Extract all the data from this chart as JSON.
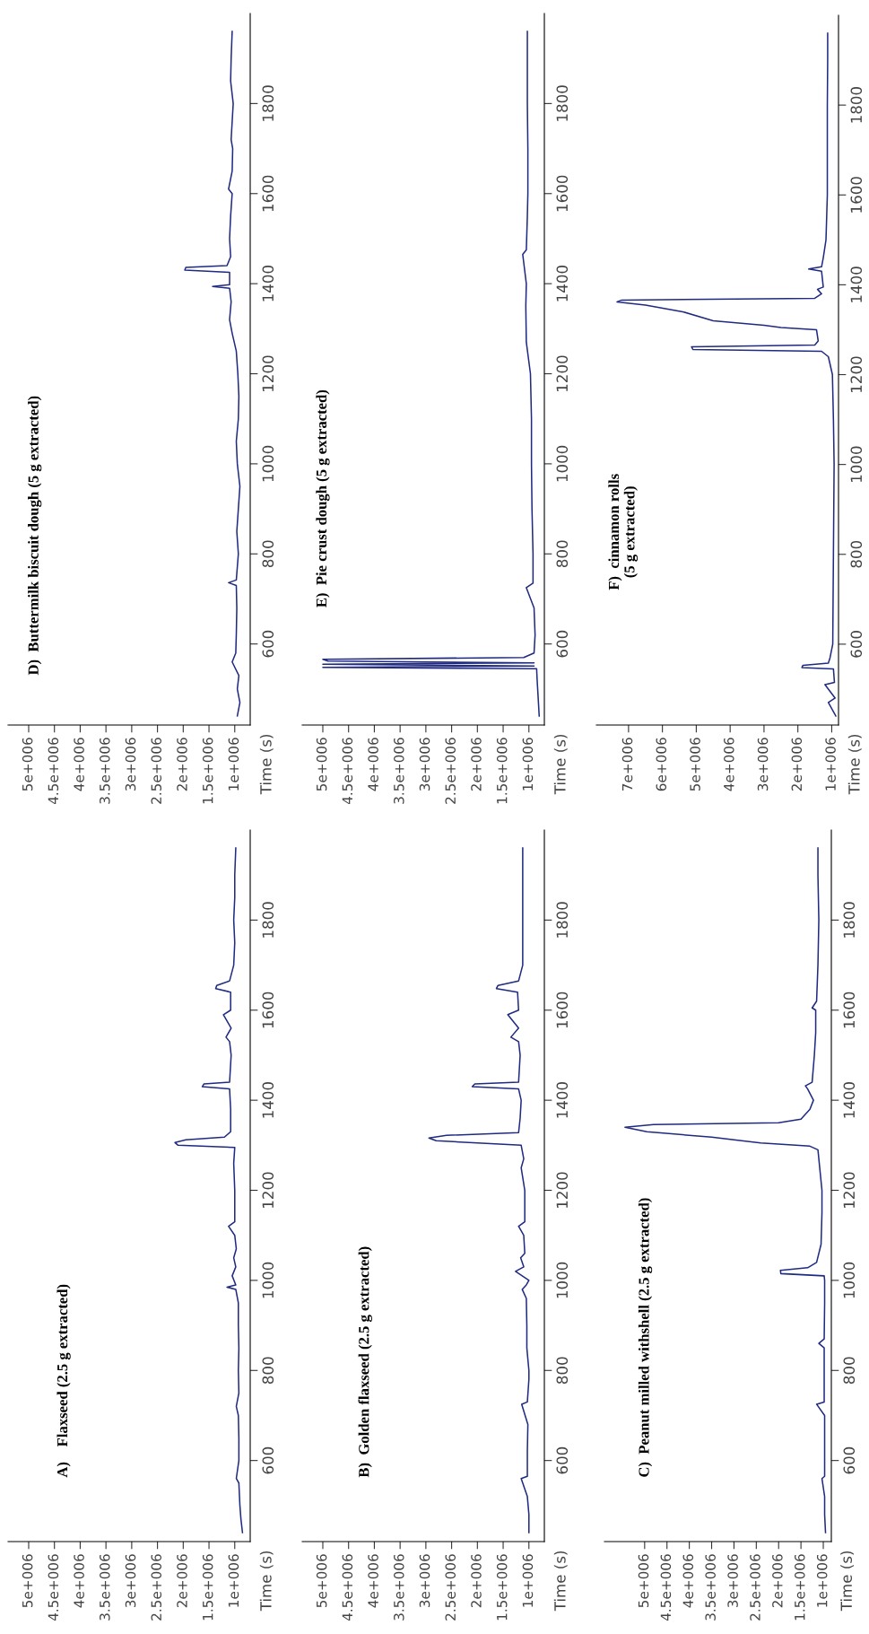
{
  "chart_data": [
    {
      "type": "line",
      "title": "D)  Buttermilk biscuit dough (5 g extracted)",
      "ylabel": "Time (s)",
      "color": "#1f2a80",
      "ylim": [
        420,
        2000
      ],
      "yticks": [
        600,
        800,
        1000,
        1200,
        1400,
        1600,
        1800
      ],
      "xlim": [
        5400000.0,
        700000.0
      ],
      "xticks": [
        {
          "value": 1000000.0,
          "label": "1e+006"
        },
        {
          "value": 1500000.0,
          "label": "1.5e+006"
        },
        {
          "value": 2000000.0,
          "label": "2e+006"
        },
        {
          "value": 2500000.0,
          "label": "2.5e+006"
        },
        {
          "value": 3000000.0,
          "label": "3e+006"
        },
        {
          "value": 3500000.0,
          "label": "3.5e+006"
        },
        {
          "value": 4000000.0,
          "label": "4e+006"
        },
        {
          "value": 4500000.0,
          "label": "4.5e+006"
        },
        {
          "value": 5000000.0,
          "label": "5e+006"
        }
      ],
      "values": [
        440,
        470,
        500,
        530,
        560,
        580,
        620,
        680,
        730,
        736,
        742,
        800,
        850,
        900,
        950,
        1000,
        1050,
        1100,
        1150,
        1200,
        1250,
        1290,
        1320,
        1360,
        1390,
        1394,
        1398,
        1425,
        1430,
        1436,
        1440,
        1460,
        1500,
        1550,
        1600,
        1610,
        1650,
        1700,
        1720,
        1800,
        1850,
        1900,
        1960
      ],
      "x": [
        950000.0,
        900000.0,
        950000.0,
        920000.0,
        1050000.0,
        980000.0,
        970000.0,
        960000.0,
        970000.0,
        1120000.0,
        970000.0,
        930000.0,
        960000.0,
        930000.0,
        900000.0,
        950000.0,
        970000.0,
        930000.0,
        920000.0,
        940000.0,
        970000.0,
        1050000.0,
        1100000.0,
        1070000.0,
        1100000.0,
        1430000.0,
        1100000.0,
        1100000.0,
        1970000.0,
        1950000.0,
        1150000.0,
        1080000.0,
        1100000.0,
        1080000.0,
        1050000.0,
        1120000.0,
        1050000.0,
        1040000.0,
        1070000.0,
        1030000.0,
        1080000.0,
        1070000.0,
        1050000.0
      ]
    },
    {
      "type": "line",
      "title": "E)  Pie crust dough (5 g extracted)",
      "ylabel": "Time (s)",
      "color": "#1f2a80",
      "ylim": [
        420,
        2000
      ],
      "yticks": [
        600,
        800,
        1000,
        1200,
        1400,
        1600,
        1800
      ],
      "xlim": [
        5400000.0,
        700000.0
      ],
      "xticks": [
        {
          "value": 1000000.0,
          "label": "1e+006"
        },
        {
          "value": 1500000.0,
          "label": "1.5e+006"
        },
        {
          "value": 2000000.0,
          "label": "2e+006"
        },
        {
          "value": 2500000.0,
          "label": "2.5e+006"
        },
        {
          "value": 3000000.0,
          "label": "3e+006"
        },
        {
          "value": 3500000.0,
          "label": "3.5e+006"
        },
        {
          "value": 4000000.0,
          "label": "4e+006"
        },
        {
          "value": 4500000.0,
          "label": "4.5e+006"
        },
        {
          "value": 5000000.0,
          "label": "5e+006"
        }
      ],
      "values": [
        440,
        480,
        520,
        545,
        548,
        551,
        555,
        558,
        562,
        566,
        570,
        580,
        620,
        680,
        725,
        735,
        800,
        900,
        1000,
        1100,
        1200,
        1270,
        1350,
        1400,
        1465,
        1475,
        1550,
        1600,
        1700,
        1800,
        1900,
        1960
      ],
      "x": [
        800000.0,
        820000.0,
        840000.0,
        850000.0,
        5000000.0,
        900000.0,
        5000000.0,
        900000.0,
        4900000.0,
        5000000.0,
        1100000.0,
        900000.0,
        880000.0,
        900000.0,
        1050000.0,
        920000.0,
        920000.0,
        940000.0,
        950000.0,
        950000.0,
        970000.0,
        1050000.0,
        1060000.0,
        1050000.0,
        1120000.0,
        1050000.0,
        1030000.0,
        1020000.0,
        1020000.0,
        1030000.0,
        1030000.0,
        1030000.0
      ]
    },
    {
      "type": "line",
      "title": "F)  cinnamon rolls\n(5 g extracted)",
      "ylabel": "Time (s)",
      "color": "#1f2a80",
      "ylim": [
        420,
        2000
      ],
      "yticks": [
        600,
        800,
        1000,
        1200,
        1400,
        1600,
        1800
      ],
      "xlim": [
        7950000.0,
        800000.0
      ],
      "xticks": [
        {
          "value": 1000000.0,
          "label": "1e+006"
        },
        {
          "value": 2000000.0,
          "label": "2e+006"
        },
        {
          "value": 3000000.0,
          "label": "3e+006"
        },
        {
          "value": 4000000.0,
          "label": "4e+006"
        },
        {
          "value": 5000000.0,
          "label": "5e+006"
        },
        {
          "value": 6000000.0,
          "label": "6e+006"
        },
        {
          "value": 7000000.0,
          "label": "7e+006"
        }
      ],
      "values": [
        440,
        470,
        480,
        510,
        515,
        545,
        548,
        553,
        558,
        570,
        600,
        700,
        800,
        900,
        1000,
        1100,
        1200,
        1240,
        1252,
        1256,
        1262,
        1266,
        1275,
        1300,
        1305,
        1310,
        1320,
        1340,
        1355,
        1362,
        1366,
        1370,
        1380,
        1390,
        1395,
        1430,
        1435,
        1440,
        1460,
        1500,
        1600,
        1700,
        1800,
        1900,
        1960
      ],
      "x": [
        880000.0,
        1100000.0,
        900000.0,
        1200000.0,
        920000.0,
        950000.0,
        1880000.0,
        1850000.0,
        1100000.0,
        1050000.0,
        970000.0,
        960000.0,
        950000.0,
        940000.0,
        930000.0,
        950000.0,
        980000.0,
        1100000.0,
        1300000.0,
        5100000.0,
        5140000.0,
        1500000.0,
        1400000.0,
        1450000.0,
        2500000.0,
        3000000.0,
        4500000.0,
        5400000.0,
        6500000.0,
        7340000.0,
        7200000.0,
        1500000.0,
        1300000.0,
        1420000.0,
        1250000.0,
        1300000.0,
        1680000.0,
        1300000.0,
        1250000.0,
        1170000.0,
        1130000.0,
        1130000.0,
        1130000.0,
        1120000.0,
        1120000.0
      ]
    },
    {
      "type": "line",
      "title": "A)    Flaxseed (2.5 g extracted)",
      "ylabel": "Time (s)",
      "color": "#1f2a80",
      "ylim": [
        420,
        2000
      ],
      "yticks": [
        600,
        800,
        1000,
        1200,
        1400,
        1600,
        1800
      ],
      "xlim": [
        5400000.0,
        700000.0
      ],
      "xticks": [
        {
          "value": 1000000.0,
          "label": "1e+006"
        },
        {
          "value": 1500000.0,
          "label": "1.5e+006"
        },
        {
          "value": 2000000.0,
          "label": "2e+006"
        },
        {
          "value": 2500000.0,
          "label": "2.5e+006"
        },
        {
          "value": 3000000.0,
          "label": "3e+006"
        },
        {
          "value": 3500000.0,
          "label": "3.5e+006"
        },
        {
          "value": 4000000.0,
          "label": "4e+006"
        },
        {
          "value": 4500000.0,
          "label": "4.5e+006"
        },
        {
          "value": 5000000.0,
          "label": "5e+006"
        }
      ],
      "values": [
        440,
        470,
        500,
        550,
        560,
        600,
        650,
        700,
        720,
        750,
        800,
        850,
        900,
        950,
        980,
        985,
        990,
        1010,
        1030,
        1050,
        1070,
        1100,
        1120,
        1130,
        1200,
        1260,
        1295,
        1300,
        1306,
        1312,
        1318,
        1330,
        1380,
        1425,
        1430,
        1436,
        1440,
        1500,
        1530,
        1540,
        1560,
        1590,
        1600,
        1640,
        1648,
        1655,
        1665,
        1700,
        1750,
        1800,
        1850,
        1900,
        1960
      ],
      "x": [
        850000.0,
        880000.0,
        900000.0,
        920000.0,
        970000.0,
        920000.0,
        920000.0,
        930000.0,
        970000.0,
        920000.0,
        930000.0,
        920000.0,
        930000.0,
        930000.0,
        980000.0,
        1150000.0,
        980000.0,
        1050000.0,
        980000.0,
        1020000.0,
        970000.0,
        1000000.0,
        1120000.0,
        1000000.0,
        1000000.0,
        1020000.0,
        1000000.0,
        2100000.0,
        2160000.0,
        1950000.0,
        1200000.0,
        1080000.0,
        1080000.0,
        1100000.0,
        1630000.0,
        1600000.0,
        1100000.0,
        1070000.0,
        1100000.0,
        1170000.0,
        1070000.0,
        1220000.0,
        1080000.0,
        1080000.0,
        1370000.0,
        1350000.0,
        1100000.0,
        1020000.0,
        1000000.0,
        1020000.0,
        1000000.0,
        1000000.0,
        980000.0
      ]
    },
    {
      "type": "line",
      "title": "B)  Golden flaxseed (2.5 g extracted)",
      "ylabel": "Time (s)",
      "color": "#1f2a80",
      "ylim": [
        420,
        2000
      ],
      "yticks": [
        600,
        800,
        1000,
        1200,
        1400,
        1600,
        1800
      ],
      "xlim": [
        5400000.0,
        700000.0
      ],
      "xticks": [
        {
          "value": 1000000.0,
          "label": "1e+006"
        },
        {
          "value": 1500000.0,
          "label": "1.5e+006"
        },
        {
          "value": 2000000.0,
          "label": "2e+006"
        },
        {
          "value": 2500000.0,
          "label": "2.5e+006"
        },
        {
          "value": 3000000.0,
          "label": "3e+006"
        },
        {
          "value": 3500000.0,
          "label": "3.5e+006"
        },
        {
          "value": 4000000.0,
          "label": "4e+006"
        },
        {
          "value": 4500000.0,
          "label": "4.5e+006"
        },
        {
          "value": 5000000.0,
          "label": "5e+006"
        }
      ],
      "values": [
        440,
        480,
        520,
        560,
        565,
        620,
        680,
        725,
        730,
        780,
        800,
        850,
        900,
        960,
        980,
        990,
        1000,
        1020,
        1030,
        1050,
        1060,
        1100,
        1120,
        1130,
        1200,
        1250,
        1270,
        1300,
        1310,
        1316,
        1322,
        1328,
        1360,
        1400,
        1425,
        1430,
        1436,
        1440,
        1500,
        1530,
        1540,
        1560,
        1590,
        1600,
        1640,
        1648,
        1655,
        1665,
        1700,
        1800,
        1900,
        1960
      ],
      "x": [
        1000000.0,
        1000000.0,
        1030000.0,
        1150000.0,
        1030000.0,
        1030000.0,
        1020000.0,
        1140000.0,
        1030000.0,
        1000000.0,
        1000000.0,
        1040000.0,
        1040000.0,
        1050000.0,
        1130000.0,
        1050000.0,
        1000000.0,
        1260000.0,
        1100000.0,
        1160000.0,
        1080000.0,
        1100000.0,
        1200000.0,
        1080000.0,
        1080000.0,
        1150000.0,
        1100000.0,
        1150000.0,
        2800000.0,
        2940000.0,
        2600000.0,
        1200000.0,
        1170000.0,
        1150000.0,
        1200000.0,
        2100000.0,
        2050000.0,
        1200000.0,
        1170000.0,
        1200000.0,
        1350000.0,
        1200000.0,
        1410000.0,
        1200000.0,
        1220000.0,
        1630000.0,
        1600000.0,
        1200000.0,
        1120000.0,
        1120000.0,
        1120000.0,
        1120000.0
      ]
    },
    {
      "type": "line",
      "title": "C)  Peanut milled withshell (2.5 g extracted)",
      "ylabel": "Time (s)",
      "color": "#1f2a80",
      "ylim": [
        420,
        2000
      ],
      "yticks": [
        600,
        800,
        1000,
        1200,
        1400,
        1600,
        1800
      ],
      "xlim": [
        5900000.0,
        820000.0
      ],
      "xticks": [
        {
          "value": 1000000.0,
          "label": "1e+006"
        },
        {
          "value": 1500000.0,
          "label": "1.5e+006"
        },
        {
          "value": 2000000.0,
          "label": "2e+006"
        },
        {
          "value": 2500000.0,
          "label": "2.5e+006"
        },
        {
          "value": 3000000.0,
          "label": "3e+006"
        },
        {
          "value": 3500000.0,
          "label": "3.5e+006"
        },
        {
          "value": 4000000.0,
          "label": "4e+006"
        },
        {
          "value": 4500000.0,
          "label": "4.5e+006"
        },
        {
          "value": 5000000.0,
          "label": "5e+006"
        }
      ],
      "values": [
        440,
        480,
        520,
        560,
        565,
        620,
        700,
        725,
        730,
        800,
        850,
        860,
        870,
        950,
        1000,
        1010,
        1015,
        1022,
        1028,
        1040,
        1080,
        1150,
        1200,
        1250,
        1290,
        1298,
        1305,
        1318,
        1330,
        1340,
        1346,
        1350,
        1358,
        1380,
        1400,
        1425,
        1432,
        1440,
        1500,
        1550,
        1600,
        1605,
        1620,
        1700,
        1800,
        1900,
        1960
      ],
      "x": [
        950000.0,
        970000.0,
        970000.0,
        1030000.0,
        970000.0,
        970000.0,
        970000.0,
        1150000.0,
        980000.0,
        980000.0,
        980000.0,
        1100000.0,
        980000.0,
        970000.0,
        970000.0,
        980000.0,
        1950000.0,
        1960000.0,
        1350000.0,
        1150000.0,
        1050000.0,
        1030000.0,
        1030000.0,
        1080000.0,
        1120000.0,
        1300000.0,
        2400000.0,
        3500000.0,
        4950000.0,
        5440000.0,
        4800000.0,
        2000000.0,
        1500000.0,
        1300000.0,
        1220000.0,
        1350000.0,
        1400000.0,
        1250000.0,
        1200000.0,
        1170000.0,
        1170000.0,
        1250000.0,
        1150000.0,
        1120000.0,
        1100000.0,
        1120000.0,
        1120000.0
      ]
    }
  ]
}
